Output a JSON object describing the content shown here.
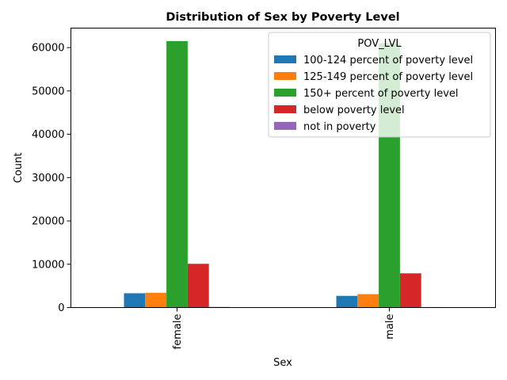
{
  "chart_data": {
    "type": "bar",
    "title": "Distribution of Sex by Poverty Level",
    "xlabel": "Sex",
    "ylabel": "Count",
    "categories": [
      "female",
      "male"
    ],
    "ylim": [
      0,
      64500
    ],
    "yticks": [
      0,
      10000,
      20000,
      30000,
      40000,
      50000,
      60000
    ],
    "legend_title": "POV_LVL",
    "legend_position": "top-right",
    "grid": false,
    "series": [
      {
        "name": "100-124 percent of poverty level",
        "color": "#1f77b4",
        "values": [
          3300,
          2700
        ]
      },
      {
        "name": "125-149 percent of poverty level",
        "color": "#ff7f0e",
        "values": [
          3400,
          3100
        ]
      },
      {
        "name": "150+ percent of poverty level",
        "color": "#2ca02c",
        "values": [
          61500,
          61000
        ]
      },
      {
        "name": "below poverty level",
        "color": "#d62728",
        "values": [
          10100,
          7900
        ]
      },
      {
        "name": "not in poverty",
        "color": "#9467bd",
        "values": [
          150,
          120
        ]
      }
    ]
  }
}
